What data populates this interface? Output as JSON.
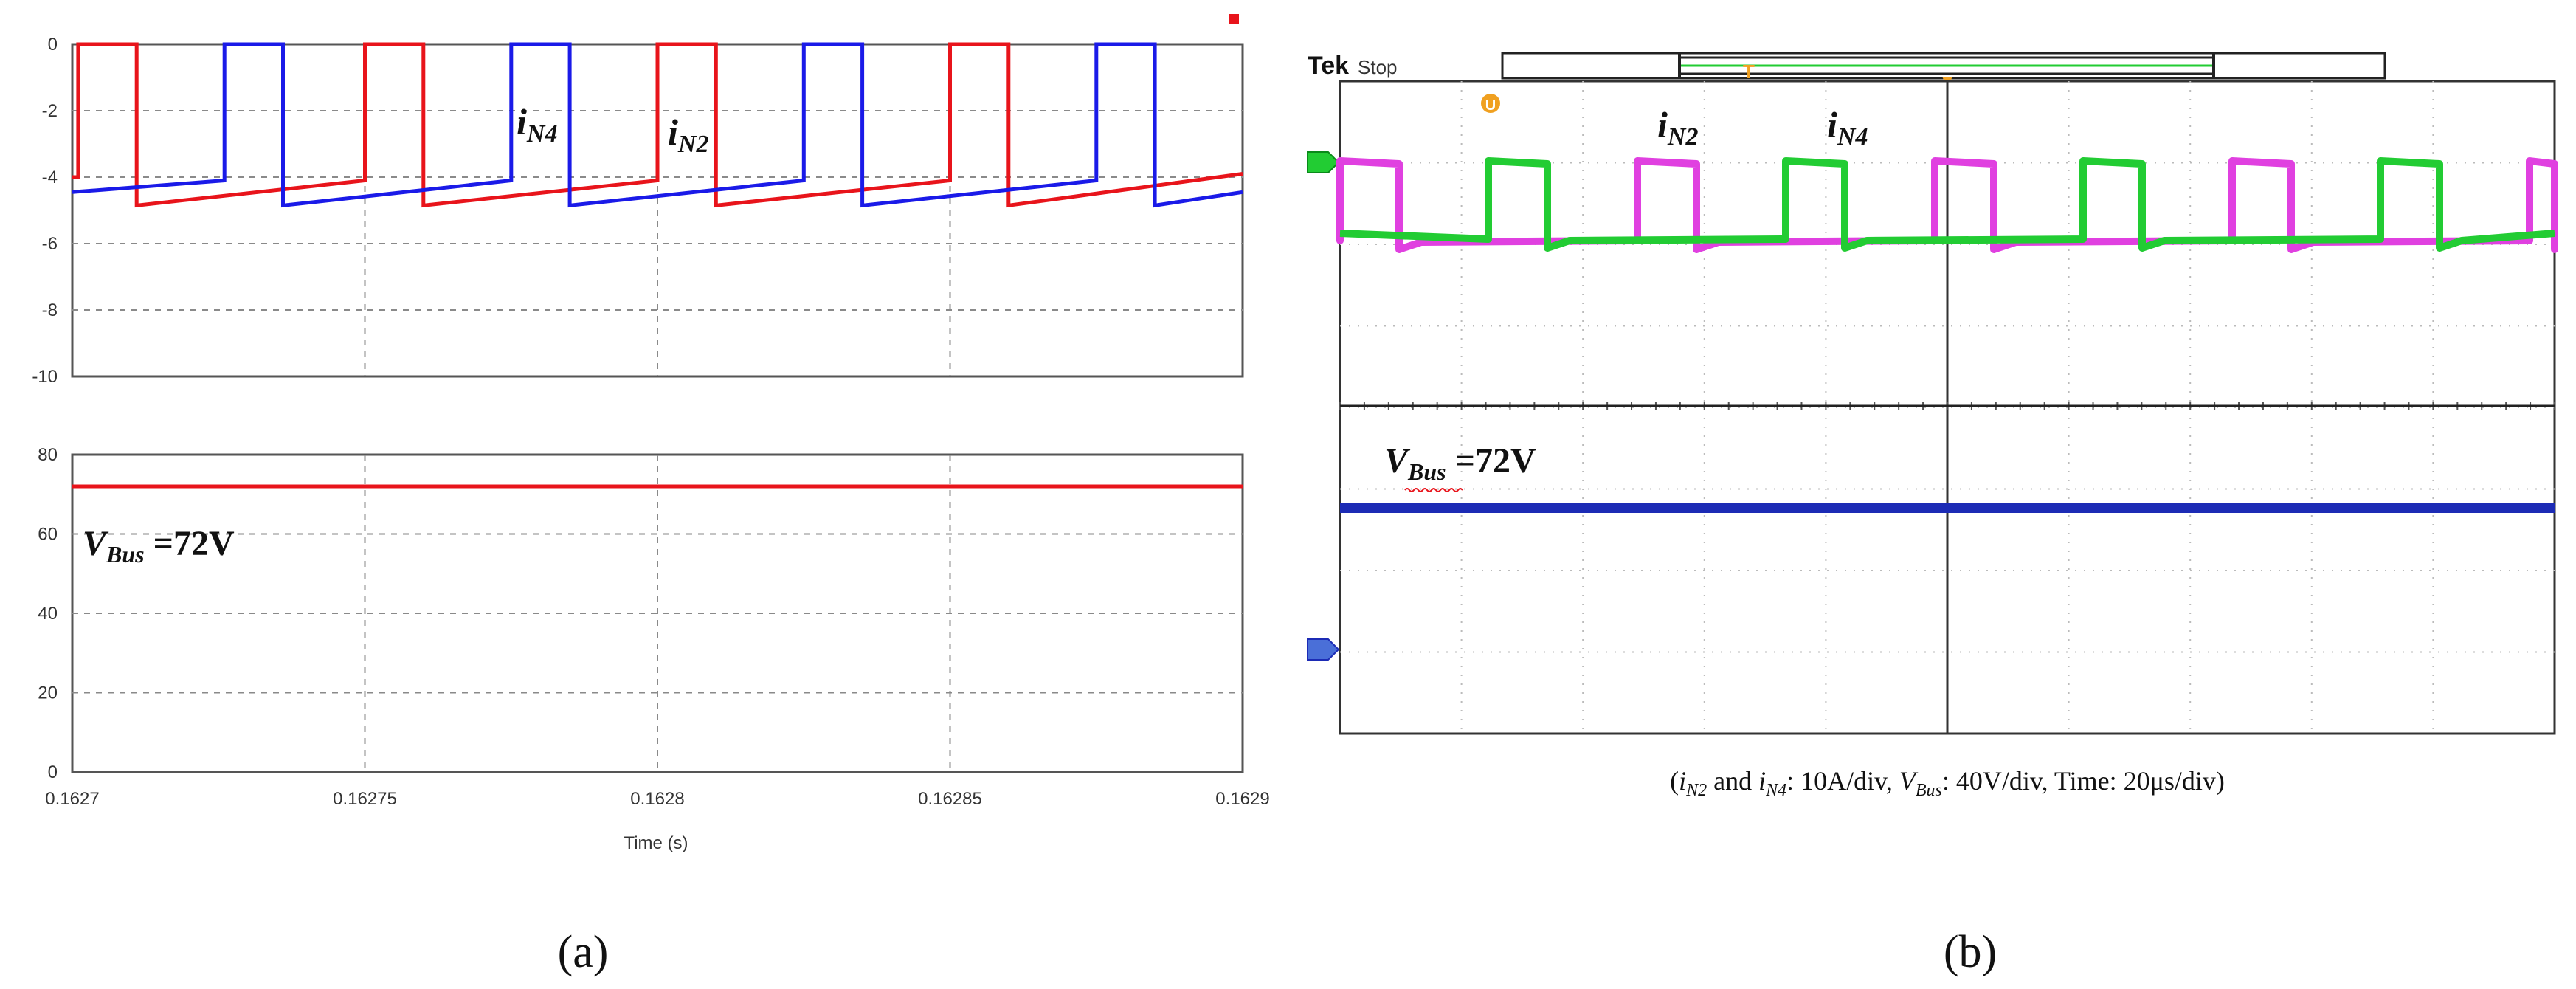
{
  "chart_data": [
    {
      "type": "line",
      "panel_label": "(a)",
      "xlabel": "Time (s)",
      "x_ticks": [
        "0.1627",
        "0.16275",
        "0.1628",
        "0.16285",
        "0.1629"
      ],
      "xlim": [
        0.1627,
        0.1629
      ],
      "grid": true,
      "subplots": [
        {
          "ylim": [
            -10,
            0
          ],
          "y_ticks": [
            "0",
            "-2",
            "-4",
            "-6",
            "-8",
            "-10"
          ],
          "annotations": [
            {
              "base": "i",
              "sub": "N4"
            },
            {
              "base": "i",
              "sub": "N2"
            }
          ],
          "series": [
            {
              "color": "#e8141b",
              "points": [
                [
                  0.1627,
                  -4.0
                ],
                [
                  0.162701,
                  -4.0
                ],
                [
                  0.162701,
                  0
                ],
                [
                  0.162711,
                  0
                ],
                [
                  0.162711,
                  -4.85
                ],
                [
                  0.16275,
                  -4.1
                ],
                [
                  0.16275,
                  0
                ],
                [
                  0.16276,
                  0
                ],
                [
                  0.16276,
                  -4.85
                ],
                [
                  0.1628,
                  -4.1
                ],
                [
                  0.1628,
                  0
                ],
                [
                  0.16281,
                  0
                ],
                [
                  0.16281,
                  -4.85
                ],
                [
                  0.16285,
                  -4.1
                ],
                [
                  0.16285,
                  0
                ],
                [
                  0.16286,
                  0
                ],
                [
                  0.16286,
                  -4.85
                ],
                [
                  0.1629,
                  -3.9
                ]
              ]
            },
            {
              "color": "#1a1ae8",
              "points": [
                [
                  0.1627,
                  -4.45
                ],
                [
                  0.162726,
                  -4.1
                ],
                [
                  0.162726,
                  0
                ],
                [
                  0.162736,
                  0
                ],
                [
                  0.162736,
                  -4.85
                ],
                [
                  0.162775,
                  -4.1
                ],
                [
                  0.162775,
                  0
                ],
                [
                  0.162785,
                  0
                ],
                [
                  0.162785,
                  -4.85
                ],
                [
                  0.162825,
                  -4.1
                ],
                [
                  0.162825,
                  0
                ],
                [
                  0.162835,
                  0
                ],
                [
                  0.162835,
                  -4.85
                ],
                [
                  0.162875,
                  -4.1
                ],
                [
                  0.162875,
                  0
                ],
                [
                  0.162885,
                  0
                ],
                [
                  0.162885,
                  -4.85
                ],
                [
                  0.1629,
                  -4.45
                ]
              ]
            }
          ]
        },
        {
          "ylim": [
            0,
            80
          ],
          "y_ticks": [
            "80",
            "60",
            "40",
            "20",
            "0"
          ],
          "annotation": {
            "base": "V",
            "sub": "Bus",
            "value": " =72V"
          },
          "series": [
            {
              "color": "#e8141b",
              "points": [
                [
                  0.1627,
                  72
                ],
                [
                  0.1629,
                  72
                ]
              ]
            }
          ]
        }
      ]
    },
    {
      "type": "line",
      "panel_label": "(b)",
      "scope_header": {
        "brand": "Tek",
        "state": "Stop"
      },
      "annotations": [
        {
          "base": "i",
          "sub": "N2"
        },
        {
          "base": "i",
          "sub": "N4"
        }
      ],
      "vbus_annotation": {
        "base": "V",
        "sub": "Bus",
        "value": " =72V"
      },
      "caption": {
        "open": "(",
        "i1": "i",
        "i1_sub": "N2",
        "and": " and ",
        "i2": "i",
        "i2_sub": "N4",
        "part1": ": 10A/div, ",
        "v": "V",
        "v_sub": "Bus",
        "part2": ": 40V/div, Time: 20μs/div)"
      },
      "grid": {
        "x_divisions": 10,
        "y_divisions": 8
      },
      "colors": {
        "iN2": "#e040e0",
        "iN4": "#22cc33",
        "vbus": "#1c2bb5",
        "trigger": "#f0a020"
      }
    }
  ]
}
